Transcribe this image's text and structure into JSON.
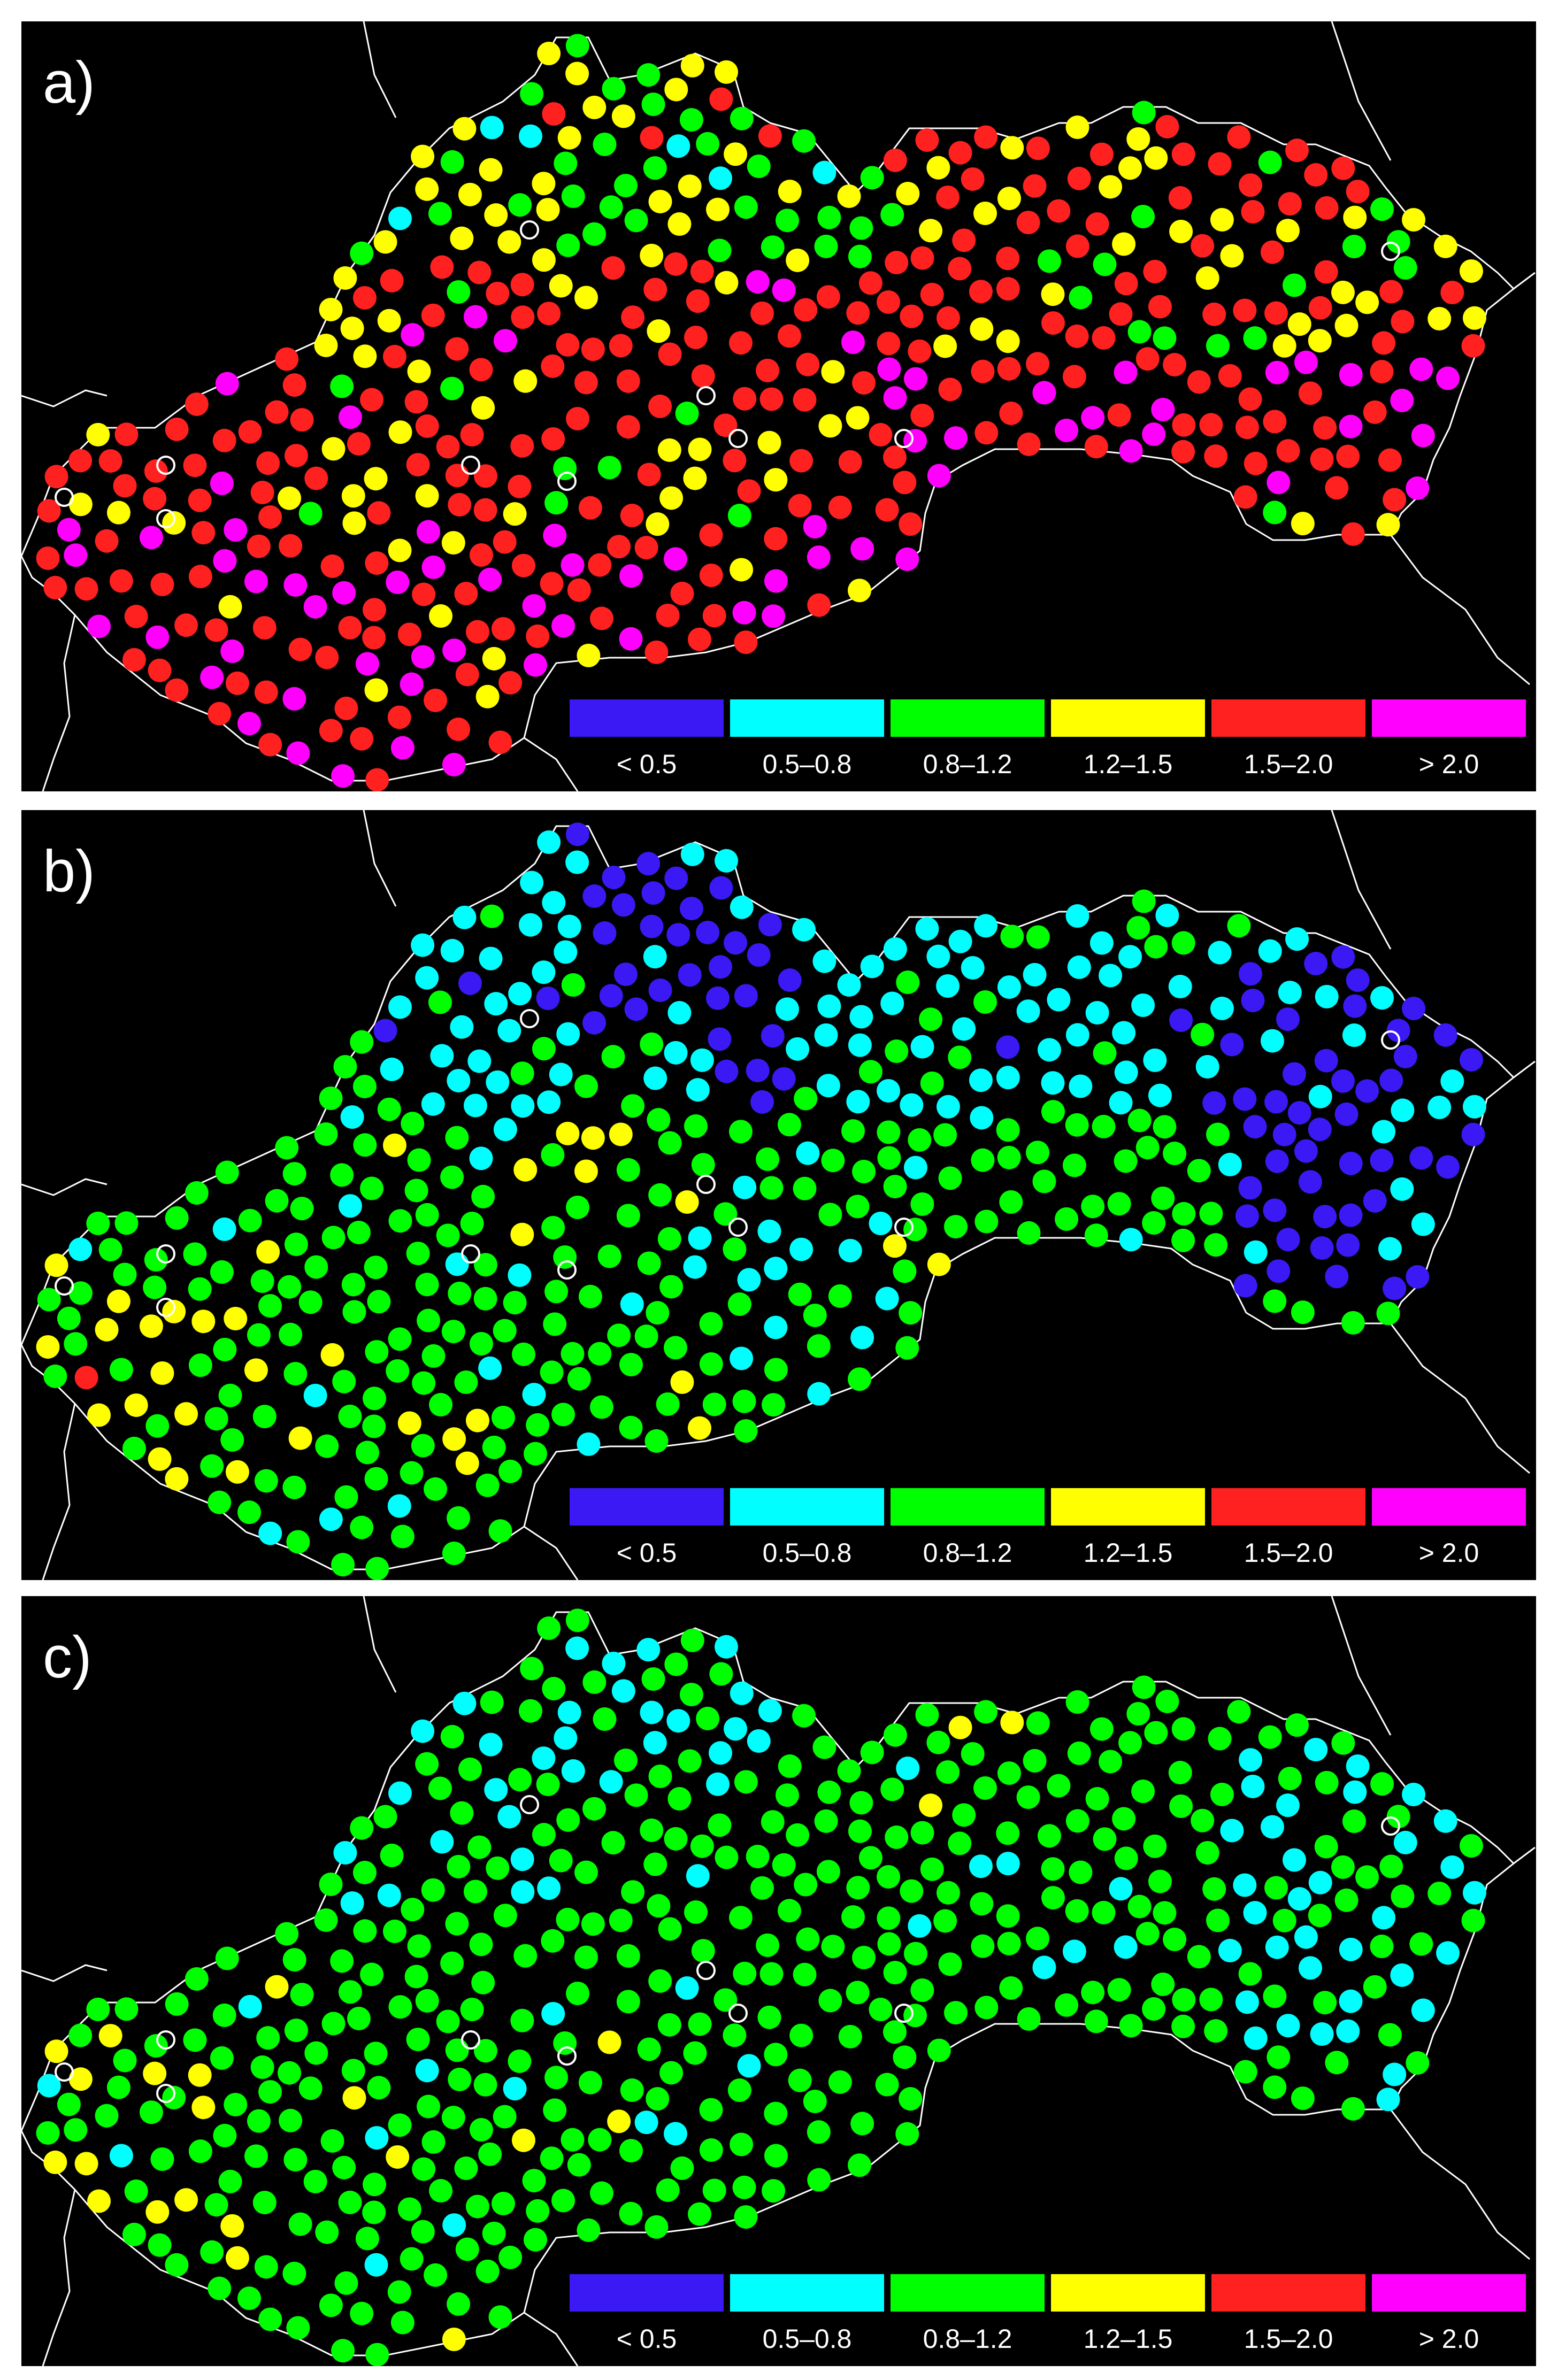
{
  "panels": [
    {
      "label": "a)"
    },
    {
      "label": "b)"
    },
    {
      "label": "c)"
    }
  ],
  "legend": [
    {
      "label": "< 0.5",
      "color": "#3a19f5"
    },
    {
      "label": "0.5–0.8",
      "color": "#00ffff"
    },
    {
      "label": "0.8–1.2",
      "color": "#00ff00"
    },
    {
      "label": "1.2–1.5",
      "color": "#ffff00"
    },
    {
      "label": "1.5–2.0",
      "color": "#ff2020"
    },
    {
      "label": "> 2.0",
      "color": "#ff00ff"
    }
  ],
  "map": {
    "background": "#000000",
    "border_color": "#ffffff",
    "station_marker_color": "#ffffff"
  }
}
